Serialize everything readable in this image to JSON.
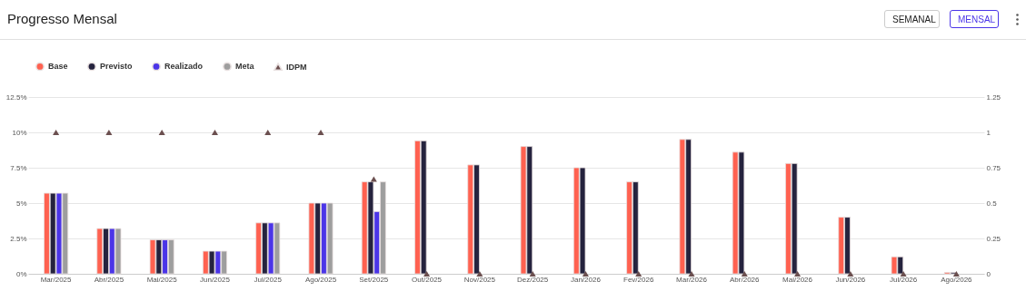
{
  "chart_data": {
    "type": "bar",
    "title": "Progresso Mensal",
    "annotations": [
      "SEMANAL",
      "MENSAL"
    ],
    "categories": [
      "Mar/2025",
      "Abr/2025",
      "Mai/2025",
      "Jun/2025",
      "Jul/2025",
      "Ago/2025",
      "Set/2025",
      "Out/2025",
      "Nov/2025",
      "Dez/2025",
      "Jan/2026",
      "Fev/2026",
      "Mar/2026",
      "Abr/2026",
      "Mai/2026",
      "Jun/2026",
      "Jul/2026",
      "Ago/2026"
    ],
    "series": [
      {
        "name": "Base",
        "color": "#ff6150",
        "values": [
          5.7,
          3.2,
          2.4,
          1.6,
          3.6,
          5.0,
          6.5,
          9.4,
          7.7,
          9.0,
          7.5,
          6.5,
          9.5,
          8.6,
          7.8,
          4.0,
          1.2,
          0.1
        ]
      },
      {
        "name": "Previsto",
        "color": "#25233e",
        "values": [
          5.7,
          3.2,
          2.4,
          1.6,
          3.6,
          5.0,
          6.5,
          9.4,
          7.7,
          9.0,
          7.5,
          6.5,
          9.5,
          8.6,
          7.8,
          4.0,
          1.2,
          0.1
        ]
      },
      {
        "name": "Realizado",
        "color": "#4b35e8",
        "values": [
          5.7,
          3.2,
          2.4,
          1.6,
          3.6,
          5.0,
          4.4,
          null,
          null,
          null,
          null,
          null,
          null,
          null,
          null,
          null,
          null,
          null
        ]
      },
      {
        "name": "Meta",
        "color": "#9e9e9e",
        "values": [
          5.7,
          3.2,
          2.4,
          1.6,
          3.6,
          5.0,
          6.5,
          null,
          null,
          null,
          null,
          null,
          null,
          null,
          null,
          null,
          null,
          null
        ]
      },
      {
        "name": "IDPM",
        "color": "#6b4f4f",
        "type": "scatter",
        "axis": "y2",
        "marker": "triangle",
        "values": [
          1,
          1,
          1,
          1,
          1,
          1,
          0.67,
          0,
          0,
          0,
          0,
          0,
          0,
          0,
          0,
          0,
          0,
          0
        ]
      }
    ],
    "ylim": [
      0,
      12.5
    ],
    "yticks": [
      {
        "value": 0,
        "label": "0%"
      },
      {
        "value": 2.5,
        "label": "2.5%"
      },
      {
        "value": 5,
        "label": "5%"
      },
      {
        "value": 7.5,
        "label": "7.5%"
      },
      {
        "value": 10,
        "label": "10%"
      },
      {
        "value": 12.5,
        "label": "12.5%"
      }
    ],
    "y2lim": [
      0,
      1.25
    ],
    "y2ticks": [
      0,
      0.25,
      0.5,
      0.75,
      1,
      1.25
    ],
    "grid": "y",
    "legend": "top"
  }
}
